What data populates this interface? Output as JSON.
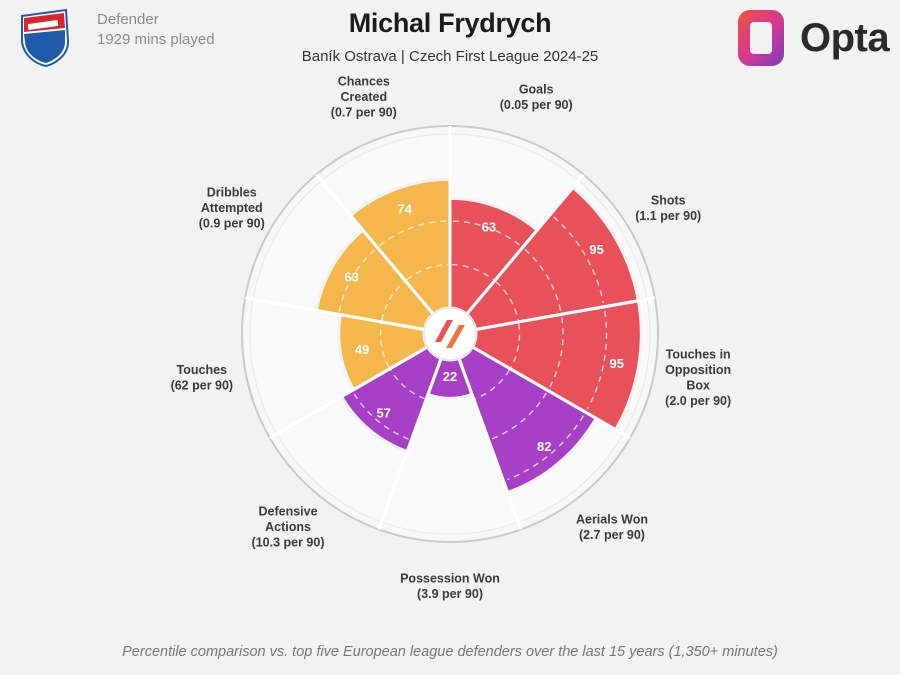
{
  "player": {
    "name": "Michal Frydrych",
    "team_league": "Baník Ostrava | Czech First League 2024-25",
    "position": "Defender",
    "minutes": "1929 mins played"
  },
  "brand": {
    "name": "Opta"
  },
  "footnote": "Percentile comparison vs. top five European league defenders over the last 15 years (1,350+ minutes)",
  "colors": {
    "attacking": "#e8515a",
    "possession": "#f5b64c",
    "defending": "#a73ec6",
    "background": "#f2f2f2"
  },
  "chart_data": {
    "type": "pie",
    "variant": "polar-area (pizza) chart of percentile ranks",
    "rlim": [
      0,
      100
    ],
    "gridlines": [
      25,
      50,
      75
    ],
    "segments": [
      {
        "label": "Goals",
        "sublabel": "(0.05 per 90)",
        "value": 63,
        "group": "attacking"
      },
      {
        "label": "Shots",
        "sublabel": "(1.1 per 90)",
        "value": 95,
        "group": "attacking"
      },
      {
        "label": "Touches in Opposition Box",
        "sublabel": "(2.0 per 90)",
        "value": 95,
        "group": "attacking"
      },
      {
        "label": "Aerials Won",
        "sublabel": "(2.7 per 90)",
        "value": 82,
        "group": "defending"
      },
      {
        "label": "Possession Won",
        "sublabel": "(3.9 per 90)",
        "value": 22,
        "group": "defending"
      },
      {
        "label": "Defensive Actions",
        "sublabel": "(10.3 per 90)",
        "value": 57,
        "group": "defending"
      },
      {
        "label": "Touches",
        "sublabel": "(62 per 90)",
        "value": 49,
        "group": "possession"
      },
      {
        "label": "Dribbles Attempted",
        "sublabel": "(0.9 per 90)",
        "value": 63,
        "group": "possession"
      },
      {
        "label": "Chances Created",
        "sublabel": "(0.7 per 90)",
        "value": 74,
        "group": "possession"
      }
    ]
  }
}
